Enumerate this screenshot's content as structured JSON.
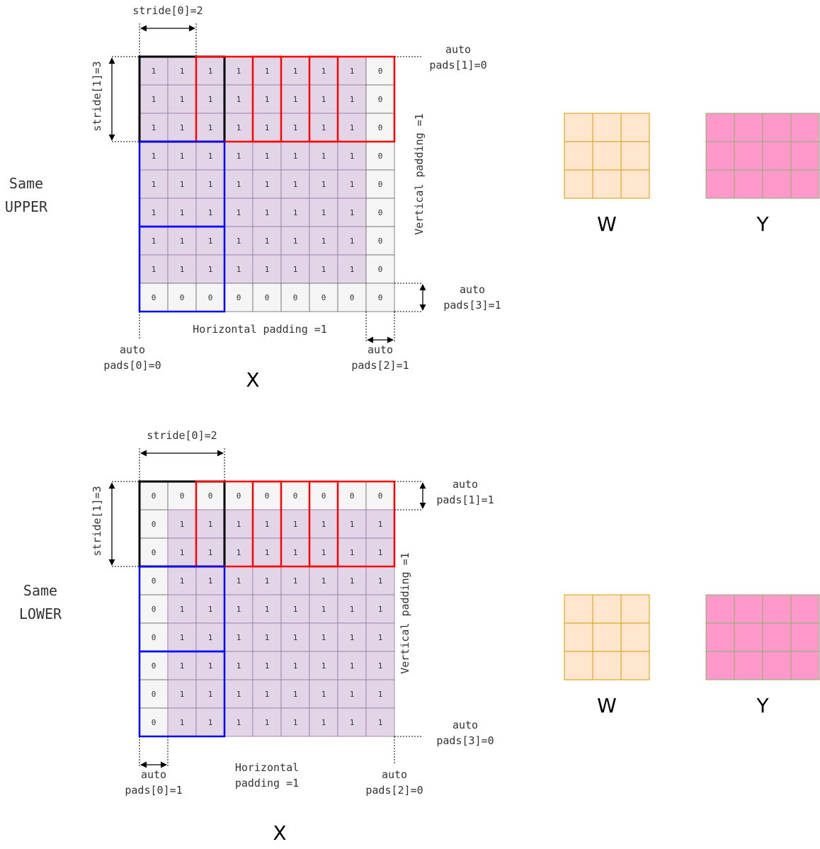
{
  "colors": {
    "cell_fill": "#e1d5e7",
    "cell_stroke": "#9673a6",
    "pad_fill": "#f5f5f5",
    "pad_stroke": "#666666",
    "black_box": "#000000",
    "red_box": "#ff0000",
    "blue_box": "#0000ff",
    "w_fill": "#ffe6cc",
    "w_stroke": "#d79b00",
    "y_fill": "#ff99cc",
    "y_stroke": "#82b366"
  },
  "upper": {
    "mode": [
      "Same",
      "UPPER"
    ],
    "grid": [
      [
        1,
        1,
        1,
        1,
        1,
        1,
        1,
        1,
        0
      ],
      [
        1,
        1,
        1,
        1,
        1,
        1,
        1,
        1,
        0
      ],
      [
        1,
        1,
        1,
        1,
        1,
        1,
        1,
        1,
        0
      ],
      [
        1,
        1,
        1,
        1,
        1,
        1,
        1,
        1,
        0
      ],
      [
        1,
        1,
        1,
        1,
        1,
        1,
        1,
        1,
        0
      ],
      [
        1,
        1,
        1,
        1,
        1,
        1,
        1,
        1,
        0
      ],
      [
        1,
        1,
        1,
        1,
        1,
        1,
        1,
        1,
        0
      ],
      [
        1,
        1,
        1,
        1,
        1,
        1,
        1,
        1,
        0
      ],
      [
        0,
        0,
        0,
        0,
        0,
        0,
        0,
        0,
        0
      ]
    ],
    "stride0": "stride[0]=2",
    "stride1": "stride[1]=3",
    "vertical_padding": "Vertical padding =1",
    "horizontal_padding": [
      "Horizontal padding =1"
    ],
    "pads1": [
      "auto",
      "pads[1]=0"
    ],
    "pads3": [
      "auto",
      "pads[3]=1"
    ],
    "pads0": [
      "auto",
      "pads[0]=0"
    ],
    "pads2": [
      "auto",
      "pads[2]=1"
    ],
    "x_label": "X",
    "w_label": "W",
    "y_label": "Y"
  },
  "lower": {
    "mode": [
      "Same",
      "LOWER"
    ],
    "grid": [
      [
        0,
        0,
        0,
        0,
        0,
        0,
        0,
        0,
        0
      ],
      [
        0,
        1,
        1,
        1,
        1,
        1,
        1,
        1,
        1
      ],
      [
        0,
        1,
        1,
        1,
        1,
        1,
        1,
        1,
        1
      ],
      [
        0,
        1,
        1,
        1,
        1,
        1,
        1,
        1,
        1
      ],
      [
        0,
        1,
        1,
        1,
        1,
        1,
        1,
        1,
        1
      ],
      [
        0,
        1,
        1,
        1,
        1,
        1,
        1,
        1,
        1
      ],
      [
        0,
        1,
        1,
        1,
        1,
        1,
        1,
        1,
        1
      ],
      [
        0,
        1,
        1,
        1,
        1,
        1,
        1,
        1,
        1
      ],
      [
        0,
        1,
        1,
        1,
        1,
        1,
        1,
        1,
        1
      ]
    ],
    "stride0": "stride[0]=2",
    "stride1": "stride[1]=3",
    "vertical_padding": "Vertical padding =1",
    "horizontal_padding": [
      "Horizontal",
      "padding =1"
    ],
    "pads1": [
      "auto",
      "pads[1]=1"
    ],
    "pads3": [
      "auto",
      "pads[3]=0"
    ],
    "pads0": [
      "auto",
      "pads[0]=1"
    ],
    "pads2": [
      "auto",
      "pads[2]=0"
    ],
    "x_label": "X",
    "w_label": "W",
    "y_label": "Y"
  }
}
